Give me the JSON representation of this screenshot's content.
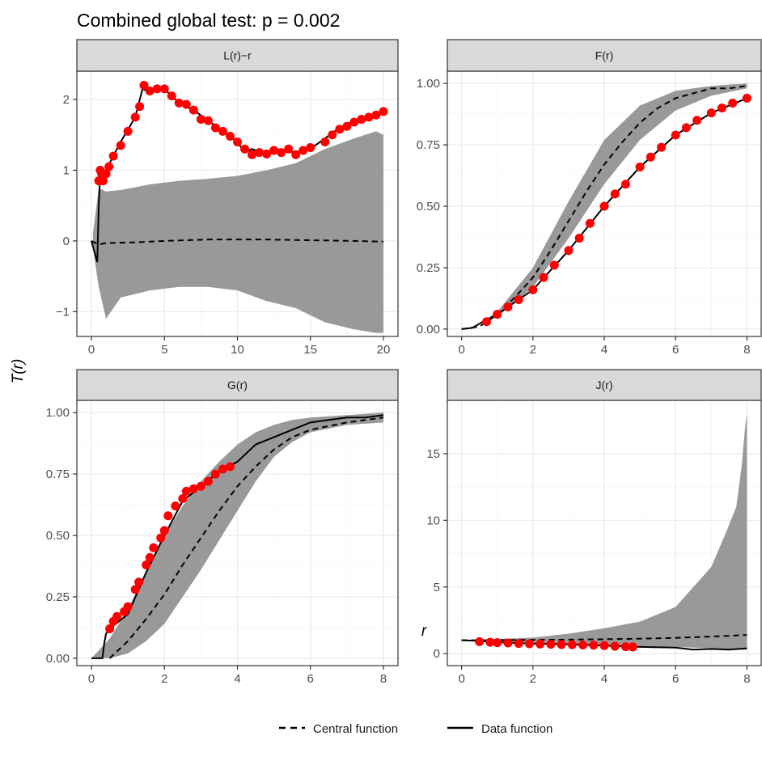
{
  "title": "Combined global test: p = 0.002",
  "ylabel": "T(r)",
  "xlabel": "r",
  "legend": {
    "position": "bottom",
    "items": [
      {
        "label": "Central function",
        "style": "dashed"
      },
      {
        "label": "Data function",
        "style": "solid"
      }
    ]
  },
  "colors": {
    "envelope": "#999999",
    "data_points": "#ff0000",
    "line": "#000000",
    "strip": "#d9d9d9",
    "grid_major": "#ebebeb",
    "grid_minor": "#f5f5f5"
  },
  "chart_data": [
    {
      "type": "line",
      "panel": "L(r)−r",
      "xlim": [
        -1,
        21
      ],
      "ylim": [
        -1.35,
        2.4
      ],
      "xticks": [
        0,
        5,
        10,
        15,
        20
      ],
      "xticklabels": [
        "0",
        "5",
        "10",
        "15",
        "20"
      ],
      "yticks": [
        -1,
        0,
        1,
        2
      ],
      "yticklabels": [
        "−1",
        "0",
        "1",
        "2"
      ],
      "envelope": {
        "x": [
          0.1,
          0.5,
          1,
          2,
          4,
          6,
          8,
          10,
          12,
          14,
          16,
          18,
          19.5,
          20
        ],
        "upper": [
          0.1,
          0.75,
          0.7,
          0.72,
          0.8,
          0.85,
          0.88,
          0.92,
          1.0,
          1.1,
          1.3,
          1.45,
          1.55,
          1.5
        ],
        "lower": [
          -0.1,
          -0.65,
          -1.1,
          -0.8,
          -0.7,
          -0.65,
          -0.65,
          -0.7,
          -0.85,
          -0.95,
          -1.15,
          -1.25,
          -1.3,
          -1.3
        ]
      },
      "central": {
        "x": [
          0,
          0.5,
          1,
          3,
          5,
          8,
          10,
          12,
          15,
          18,
          20
        ],
        "y": [
          0,
          -0.05,
          -0.03,
          -0.02,
          0,
          0.02,
          0.02,
          0.02,
          0.01,
          0.0,
          -0.01
        ]
      },
      "data": {
        "x": [
          0,
          0.4,
          0.5,
          0.6,
          1,
          1.5,
          2,
          3,
          3.5,
          4,
          5,
          6,
          7,
          8,
          9,
          10,
          10.5,
          11,
          12,
          13,
          14,
          15,
          16,
          17,
          18,
          19,
          20
        ],
        "y": [
          0,
          -0.3,
          0.5,
          0.95,
          1.0,
          1.2,
          1.4,
          1.75,
          2.15,
          2.1,
          2.15,
          1.95,
          1.85,
          1.7,
          1.55,
          1.4,
          1.25,
          1.3,
          1.22,
          1.28,
          1.25,
          1.3,
          1.45,
          1.6,
          1.7,
          1.75,
          1.85
        ]
      },
      "flagged": {
        "x": [
          0.5,
          0.6,
          0.7,
          0.8,
          1.0,
          1.2,
          1.5,
          2.0,
          2.5,
          3.0,
          3.3,
          3.6,
          4.0,
          4.5,
          5.0,
          5.5,
          6.0,
          6.5,
          7.0,
          7.5,
          8.0,
          8.5,
          9.0,
          9.5,
          10.0,
          10.5,
          11.0,
          11.5,
          12.0,
          12.5,
          13.0,
          13.5,
          14.0,
          14.5,
          15.0,
          16.0,
          16.5,
          17.0,
          17.5,
          18.0,
          18.5,
          19.0,
          19.5,
          20.0
        ],
        "y": [
          0.85,
          1.0,
          0.95,
          0.85,
          0.95,
          1.05,
          1.2,
          1.35,
          1.55,
          1.75,
          1.9,
          2.2,
          2.12,
          2.15,
          2.15,
          2.05,
          1.95,
          1.93,
          1.85,
          1.72,
          1.7,
          1.6,
          1.55,
          1.48,
          1.4,
          1.3,
          1.22,
          1.25,
          1.23,
          1.28,
          1.25,
          1.3,
          1.22,
          1.28,
          1.32,
          1.4,
          1.5,
          1.58,
          1.62,
          1.68,
          1.72,
          1.75,
          1.78,
          1.83
        ]
      }
    },
    {
      "type": "line",
      "panel": "F(r)",
      "xlim": [
        -0.4,
        8.4
      ],
      "ylim": [
        -0.03,
        1.05
      ],
      "xticks": [
        0,
        2,
        4,
        6,
        8
      ],
      "xticklabels": [
        "0",
        "2",
        "4",
        "6",
        "8"
      ],
      "yticks": [
        0,
        0.25,
        0.5,
        0.75,
        1
      ],
      "yticklabels": [
        "0.00",
        "0.25",
        "0.50",
        "0.75",
        "1.00"
      ],
      "envelope": {
        "x": [
          0.6,
          1,
          2,
          3,
          4,
          5,
          6,
          7,
          8
        ],
        "upper": [
          0.03,
          0.07,
          0.25,
          0.52,
          0.77,
          0.91,
          0.97,
          0.99,
          1.0
        ],
        "lower": [
          0.02,
          0.05,
          0.17,
          0.37,
          0.59,
          0.77,
          0.89,
          0.95,
          0.98
        ]
      },
      "central": {
        "x": [
          0,
          0.5,
          1,
          1.5,
          2,
          2.5,
          3,
          3.5,
          4,
          4.5,
          5,
          5.5,
          6,
          6.5,
          7,
          7.5,
          8
        ],
        "y": [
          0,
          0.01,
          0.06,
          0.13,
          0.21,
          0.32,
          0.44,
          0.56,
          0.67,
          0.76,
          0.84,
          0.9,
          0.94,
          0.96,
          0.98,
          0.98,
          0.99
        ]
      },
      "data": {
        "x": [
          0,
          0.3,
          0.6,
          1,
          2,
          3,
          4,
          5,
          6,
          7,
          8
        ],
        "y": [
          0,
          0.005,
          0.03,
          0.06,
          0.16,
          0.32,
          0.5,
          0.66,
          0.79,
          0.88,
          0.94
        ]
      },
      "flagged": {
        "x": [
          0.7,
          1.0,
          1.3,
          1.6,
          2.0,
          2.3,
          2.6,
          3.0,
          3.3,
          3.6,
          4.0,
          4.3,
          4.6,
          5.0,
          5.3,
          5.6,
          6.0,
          6.3,
          6.6,
          7.0,
          7.3,
          7.6,
          8.0
        ],
        "y": [
          0.03,
          0.06,
          0.09,
          0.12,
          0.16,
          0.21,
          0.26,
          0.32,
          0.37,
          0.43,
          0.5,
          0.55,
          0.59,
          0.66,
          0.7,
          0.74,
          0.79,
          0.82,
          0.85,
          0.88,
          0.9,
          0.92,
          0.94
        ]
      }
    },
    {
      "type": "line",
      "panel": "G(r)",
      "xlim": [
        -0.4,
        8.4
      ],
      "ylim": [
        -0.03,
        1.05
      ],
      "xticks": [
        0,
        2,
        4,
        6,
        8
      ],
      "xticklabels": [
        "0",
        "2",
        "4",
        "6",
        "8"
      ],
      "yticks": [
        0,
        0.25,
        0.5,
        0.75,
        1
      ],
      "yticklabels": [
        "0.00",
        "0.25",
        "0.50",
        "0.75",
        "1.00"
      ],
      "envelope": {
        "x": [
          0,
          0.5,
          1,
          1.5,
          2,
          2.5,
          3,
          3.5,
          4,
          4.5,
          5,
          5.5,
          6,
          7,
          8
        ],
        "upper": [
          0,
          0.08,
          0.2,
          0.35,
          0.5,
          0.62,
          0.72,
          0.8,
          0.87,
          0.92,
          0.95,
          0.97,
          0.98,
          0.99,
          1.0
        ],
        "lower": [
          0,
          0,
          0.02,
          0.07,
          0.14,
          0.25,
          0.36,
          0.48,
          0.6,
          0.72,
          0.82,
          0.88,
          0.92,
          0.95,
          0.96
        ]
      },
      "central": {
        "x": [
          0.5,
          1,
          1.5,
          2,
          2.5,
          3,
          3.5,
          4,
          4.5,
          5,
          5.5,
          6,
          7,
          8
        ],
        "y": [
          0,
          0.07,
          0.16,
          0.26,
          0.38,
          0.49,
          0.6,
          0.7,
          0.78,
          0.85,
          0.9,
          0.93,
          0.96,
          0.98
        ]
      },
      "data": {
        "x": [
          0,
          0.3,
          0.35,
          0.4,
          0.5,
          1.0,
          1.5,
          2.0,
          2.5,
          3.0,
          3.5,
          4.0,
          4.5,
          5.0,
          5.5,
          6.0,
          6.5,
          7.0,
          7.5,
          8.0
        ],
        "y": [
          0,
          0,
          0.06,
          0.1,
          0.12,
          0.18,
          0.35,
          0.5,
          0.64,
          0.7,
          0.76,
          0.8,
          0.87,
          0.9,
          0.93,
          0.96,
          0.97,
          0.98,
          0.98,
          0.99
        ]
      },
      "flagged": {
        "x": [
          0.5,
          0.6,
          0.7,
          0.9,
          1.0,
          1.2,
          1.3,
          1.5,
          1.6,
          1.7,
          1.9,
          2.0,
          2.1,
          2.3,
          2.5,
          2.6,
          2.8,
          3.0,
          3.2,
          3.4,
          3.6,
          3.8
        ],
        "y": [
          0.12,
          0.15,
          0.17,
          0.19,
          0.21,
          0.28,
          0.31,
          0.38,
          0.41,
          0.45,
          0.49,
          0.52,
          0.58,
          0.62,
          0.65,
          0.68,
          0.69,
          0.7,
          0.72,
          0.75,
          0.77,
          0.78
        ]
      }
    },
    {
      "type": "line",
      "panel": "J(r)",
      "xlim": [
        -0.4,
        8.4
      ],
      "ylim": [
        -0.9,
        19
      ],
      "xticks": [
        0,
        2,
        4,
        6,
        8
      ],
      "xticklabels": [
        "0",
        "2",
        "4",
        "6",
        "8"
      ],
      "yticks": [
        0,
        5,
        10,
        15
      ],
      "yticklabels": [
        "0",
        "5",
        "10",
        "15"
      ],
      "envelope": {
        "x": [
          0,
          1,
          2,
          3,
          4,
          5,
          6,
          6.5,
          7,
          7.4,
          7.7,
          7.85,
          7.95,
          8.0
        ],
        "upper": [
          1.0,
          1.1,
          1.2,
          1.5,
          1.9,
          2.4,
          3.5,
          5.0,
          6.5,
          9.0,
          11.0,
          14.0,
          17.0,
          18.0
        ],
        "lower": [
          1.0,
          0.9,
          0.8,
          0.7,
          0.6,
          0.55,
          0.5,
          0.45,
          0.4,
          0.35,
          0.3,
          0.3,
          0.3,
          0.3
        ]
      },
      "central": {
        "x": [
          0,
          1,
          2,
          3,
          4,
          5,
          6,
          7,
          8
        ],
        "y": [
          1.0,
          1.01,
          1.03,
          1.05,
          1.08,
          1.12,
          1.18,
          1.28,
          1.4
        ]
      },
      "data": {
        "x": [
          0,
          0.5,
          1,
          2,
          3,
          4,
          5,
          6,
          6.5,
          7,
          7.5,
          8
        ],
        "y": [
          1.0,
          0.95,
          0.85,
          0.75,
          0.7,
          0.6,
          0.5,
          0.45,
          0.3,
          0.35,
          0.3,
          0.4
        ]
      },
      "flagged": {
        "x": [
          0.5,
          0.8,
          1.0,
          1.3,
          1.6,
          1.9,
          2.2,
          2.5,
          2.8,
          3.1,
          3.4,
          3.7,
          4.0,
          4.3,
          4.6,
          4.8
        ],
        "y": [
          0.9,
          0.85,
          0.82,
          0.8,
          0.76,
          0.74,
          0.72,
          0.7,
          0.68,
          0.67,
          0.65,
          0.63,
          0.6,
          0.55,
          0.52,
          0.5
        ]
      }
    }
  ]
}
